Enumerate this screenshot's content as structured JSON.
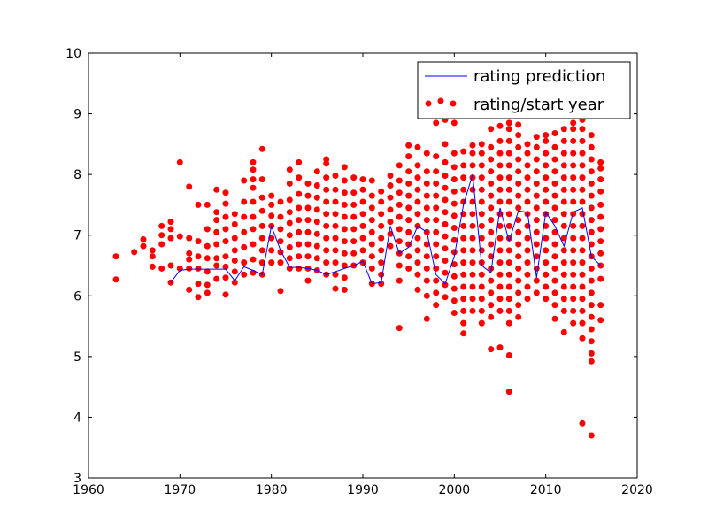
{
  "chart_data": {
    "type": "scatter",
    "title": "",
    "xlabel": "",
    "ylabel": "",
    "xlim": [
      1960,
      2020
    ],
    "ylim": [
      3,
      10
    ],
    "xticks": [
      1960,
      1970,
      1980,
      1990,
      2000,
      2010,
      2020
    ],
    "yticks": [
      3,
      4,
      5,
      6,
      7,
      8,
      9,
      10
    ],
    "grid": false,
    "legend_position": "top-right",
    "series": [
      {
        "name": "rating prediction",
        "type": "line",
        "color": "#0000ff",
        "x": [
          1969,
          1970,
          1971,
          1972,
          1973,
          1974,
          1975,
          1976,
          1977,
          1978,
          1979,
          1980,
          1981,
          1982,
          1983,
          1984,
          1985,
          1986,
          1987,
          1988,
          1989,
          1990,
          1991,
          1992,
          1993,
          1994,
          1995,
          1996,
          1997,
          1998,
          1999,
          2000,
          2001,
          2002,
          2003,
          2004,
          2005,
          2006,
          2007,
          2008,
          2009,
          2010,
          2011,
          2012,
          2013,
          2014,
          2015,
          2016
        ],
        "y": [
          6.22,
          6.42,
          6.44,
          6.44,
          6.44,
          6.44,
          6.44,
          6.25,
          6.48,
          6.42,
          6.35,
          7.15,
          6.75,
          6.47,
          6.47,
          6.45,
          6.42,
          6.35,
          6.4,
          6.45,
          6.5,
          6.57,
          6.2,
          6.22,
          7.15,
          6.7,
          6.8,
          7.15,
          7.05,
          6.35,
          6.2,
          6.65,
          7.5,
          8.0,
          6.5,
          6.38,
          7.45,
          6.9,
          7.4,
          7.38,
          6.3,
          7.38,
          7.15,
          6.82,
          7.38,
          7.45,
          6.65,
          6.5
        ]
      },
      {
        "name": "rating/start year",
        "type": "scatter",
        "color": "#ff0000",
        "groups": [
          {
            "x": 1963,
            "y": [
              6.27,
              6.65
            ]
          },
          {
            "x": 1965,
            "y": [
              6.72
            ]
          },
          {
            "x": 1966,
            "y": [
              6.82,
              6.93
            ]
          },
          {
            "x": 1967,
            "y": [
              6.48,
              6.65,
              6.75
            ]
          },
          {
            "x": 1968,
            "y": [
              6.45,
              6.85,
              7.0,
              7.15
            ]
          },
          {
            "x": 1969,
            "y": [
              6.22,
              6.5,
              6.95,
              7.1,
              7.22
            ]
          },
          {
            "x": 1970,
            "y": [
              6.45,
              6.98,
              8.2
            ]
          },
          {
            "x": 1971,
            "y": [
              6.1,
              6.45,
              6.6,
              6.7,
              6.95,
              7.8
            ]
          },
          {
            "x": 1972,
            "y": [
              5.98,
              6.2,
              6.45,
              6.65,
              6.9,
              7.5
            ]
          },
          {
            "x": 1973,
            "y": [
              6.05,
              6.18,
              6.4,
              6.62,
              6.82,
              7.1,
              7.5
            ]
          },
          {
            "x": 1974,
            "y": [
              6.28,
              6.5,
              6.62,
              6.85,
              7.05,
              7.25,
              7.38,
              7.75
            ]
          },
          {
            "x": 1975,
            "y": [
              6.02,
              6.3,
              6.48,
              6.65,
              6.9,
              7.1,
              7.3,
              7.52,
              7.7
            ]
          },
          {
            "x": 1976,
            "y": [
              6.22,
              6.4,
              6.58,
              6.75,
              6.95,
              7.18,
              7.35
            ]
          },
          {
            "x": 1977,
            "y": [
              6.35,
              6.55,
              6.8,
              7.05,
              7.3,
              7.55,
              7.9
            ]
          },
          {
            "x": 1978,
            "y": [
              6.38,
              6.6,
              6.85,
              7.1,
              7.3,
              7.55,
              7.78,
              7.92,
              8.08,
              8.2
            ]
          },
          {
            "x": 1979,
            "y": [
              6.35,
              6.55,
              6.75,
              6.95,
              7.15,
              7.4,
              7.62,
              7.92,
              8.42
            ]
          },
          {
            "x": 1980,
            "y": [
              6.55,
              6.75,
              6.95,
              7.15,
              7.32,
              7.5,
              7.65
            ]
          },
          {
            "x": 1981,
            "y": [
              6.08,
              6.55,
              6.72,
              6.9,
              7.1,
              7.3,
              7.55
            ]
          },
          {
            "x": 1982,
            "y": [
              6.45,
              6.62,
              6.8,
              7.0,
              7.2,
              7.38,
              7.58,
              7.85,
              8.08
            ]
          },
          {
            "x": 1983,
            "y": [
              6.45,
              6.65,
              6.85,
              7.05,
              7.25,
              7.45,
              7.68,
              7.95,
              8.2
            ]
          },
          {
            "x": 1984,
            "y": [
              6.25,
              6.45,
              6.65,
              6.85,
              7.05,
              7.25,
              7.45,
              7.65,
              7.85
            ]
          },
          {
            "x": 1985,
            "y": [
              6.42,
              6.62,
              6.82,
              7.02,
              7.22,
              7.42,
              7.62,
              7.82,
              8.05
            ]
          },
          {
            "x": 1986,
            "y": [
              6.35,
              6.55,
              6.75,
              6.95,
              7.15,
              7.35,
              7.55,
              7.75,
              7.95,
              8.18,
              8.25
            ]
          },
          {
            "x": 1987,
            "y": [
              6.12,
              6.35,
              6.55,
              6.75,
              6.95,
              7.15,
              7.35,
              7.55,
              7.75,
              7.98
            ]
          },
          {
            "x": 1988,
            "y": [
              6.1,
              6.3,
              6.5,
              6.7,
              6.9,
              7.1,
              7.3,
              7.5,
              7.7,
              7.9,
              8.12
            ]
          },
          {
            "x": 1989,
            "y": [
              6.5,
              6.7,
              6.9,
              7.1,
              7.3,
              7.5,
              7.7,
              7.95
            ]
          },
          {
            "x": 1990,
            "y": [
              6.55,
              6.75,
              6.95,
              7.15,
              7.35,
              7.55,
              7.75,
              7.92
            ]
          },
          {
            "x": 1991,
            "y": [
              6.2,
              6.45,
              6.65,
              6.85,
              7.05,
              7.25,
              7.45,
              7.65,
              7.9
            ]
          },
          {
            "x": 1992,
            "y": [
              6.2,
              6.35,
              6.55,
              6.75,
              6.95,
              7.15,
              7.35,
              7.55,
              7.72
            ]
          },
          {
            "x": 1993,
            "y": [
              6.82,
              7.02,
              7.22,
              7.42,
              7.62,
              7.82,
              7.98
            ]
          },
          {
            "x": 1994,
            "y": [
              5.47,
              6.25,
              6.5,
              6.7,
              6.9,
              7.1,
              7.3,
              7.5,
              7.7,
              7.9,
              8.15
            ]
          },
          {
            "x": 1995,
            "y": [
              6.45,
              6.65,
              6.85,
              7.05,
              7.25,
              7.45,
              7.65,
              7.85,
              8.05,
              8.3,
              8.48
            ]
          },
          {
            "x": 1996,
            "y": [
              6.1,
              6.35,
              6.55,
              6.75,
              6.95,
              7.15,
              7.35,
              7.55,
              7.75,
              7.95,
              8.15,
              8.45
            ]
          },
          {
            "x": 1997,
            "y": [
              5.62,
              6.0,
              6.25,
              6.45,
              6.65,
              6.85,
              7.05,
              7.25,
              7.45,
              7.65,
              7.85,
              8.05,
              8.35
            ]
          },
          {
            "x": 1998,
            "y": [
              5.85,
              6.05,
              6.25,
              6.45,
              6.65,
              6.85,
              7.05,
              7.25,
              7.45,
              7.65,
              7.85,
              8.05,
              8.3,
              8.85
            ]
          },
          {
            "x": 1999,
            "y": [
              5.98,
              6.18,
              6.38,
              6.58,
              6.78,
              6.98,
              7.18,
              7.38,
              7.58,
              7.78,
              7.98,
              8.2,
              8.5,
              8.9
            ]
          },
          {
            "x": 2000,
            "y": [
              5.72,
              5.92,
              6.12,
              6.32,
              6.52,
              6.72,
              6.92,
              7.12,
              7.32,
              7.52,
              7.72,
              7.92,
              8.12,
              8.35,
              8.85
            ]
          },
          {
            "x": 2001,
            "y": [
              5.38,
              5.55,
              5.75,
              5.95,
              6.15,
              6.35,
              6.55,
              6.75,
              6.95,
              7.15,
              7.35,
              7.55,
              7.75,
              7.95,
              8.15,
              8.38
            ]
          },
          {
            "x": 2002,
            "y": [
              5.75,
              5.95,
              6.15,
              6.35,
              6.55,
              6.75,
              6.95,
              7.15,
              7.35,
              7.55,
              7.75,
              7.95,
              8.15,
              8.35,
              8.48
            ]
          },
          {
            "x": 2003,
            "y": [
              5.55,
              5.75,
              5.95,
              6.15,
              6.35,
              6.55,
              6.75,
              6.95,
              7.15,
              7.35,
              7.55,
              7.75,
              7.95,
              8.15,
              8.35,
              8.5
            ]
          },
          {
            "x": 2004,
            "y": [
              5.12,
              5.65,
              5.85,
              6.05,
              6.25,
              6.45,
              6.65,
              6.85,
              7.05,
              7.25,
              7.45,
              7.65,
              7.85,
              8.05,
              8.25,
              8.45,
              8.75
            ]
          },
          {
            "x": 2005,
            "y": [
              5.15,
              5.75,
              5.95,
              6.15,
              6.35,
              6.55,
              6.75,
              6.95,
              7.15,
              7.35,
              7.55,
              7.75,
              7.95,
              8.15,
              8.35,
              8.55,
              8.8
            ]
          },
          {
            "x": 2006,
            "y": [
              4.42,
              5.02,
              5.55,
              5.75,
              5.95,
              6.15,
              6.35,
              6.55,
              6.75,
              6.95,
              7.15,
              7.35,
              7.55,
              7.75,
              7.95,
              8.15,
              8.35,
              8.55,
              8.75,
              8.85
            ]
          },
          {
            "x": 2007,
            "y": [
              5.65,
              5.85,
              6.05,
              6.25,
              6.45,
              6.65,
              6.85,
              7.05,
              7.25,
              7.45,
              7.65,
              7.85,
              8.05,
              8.25,
              8.45,
              8.65,
              8.82
            ]
          },
          {
            "x": 2008,
            "y": [
              5.95,
              6.15,
              6.35,
              6.55,
              6.75,
              6.95,
              7.15,
              7.35,
              7.55,
              7.75,
              7.95,
              8.15,
              8.35,
              8.5
            ]
          },
          {
            "x": 2009,
            "y": [
              6.05,
              6.25,
              6.45,
              6.65,
              6.85,
              7.05,
              7.25,
              7.45,
              7.65,
              7.85,
              8.05,
              8.25,
              8.45,
              8.62
            ]
          },
          {
            "x": 2010,
            "y": [
              5.95,
              6.15,
              6.35,
              6.55,
              6.75,
              6.95,
              7.15,
              7.35,
              7.55,
              7.75,
              7.95,
              8.15,
              8.35,
              8.55,
              8.65
            ]
          },
          {
            "x": 2011,
            "y": [
              5.62,
              5.85,
              6.05,
              6.25,
              6.45,
              6.65,
              6.85,
              7.05,
              7.25,
              7.45,
              7.65,
              7.85,
              8.05,
              8.25,
              8.45,
              8.68
            ]
          },
          {
            "x": 2012,
            "y": [
              5.4,
              5.75,
              5.95,
              6.15,
              6.35,
              6.55,
              6.75,
              6.95,
              7.15,
              7.35,
              7.55,
              7.75,
              7.95,
              8.15,
              8.35,
              8.55,
              8.75
            ]
          },
          {
            "x": 2013,
            "y": [
              5.55,
              5.75,
              5.95,
              6.15,
              6.35,
              6.55,
              6.75,
              6.95,
              7.15,
              7.35,
              7.55,
              7.75,
              7.95,
              8.15,
              8.35,
              8.55,
              8.75,
              8.85
            ]
          },
          {
            "x": 2014,
            "y": [
              3.9,
              5.3,
              5.55,
              5.75,
              5.95,
              6.15,
              6.35,
              6.55,
              6.75,
              6.95,
              7.15,
              7.35,
              7.55,
              7.75,
              7.95,
              8.15,
              8.35,
              8.55,
              8.75,
              8.9
            ]
          },
          {
            "x": 2015,
            "y": [
              3.7,
              4.92,
              5.05,
              5.25,
              5.45,
              5.65,
              5.85,
              6.05,
              6.25,
              6.45,
              6.65,
              6.85,
              7.05,
              7.25,
              7.45,
              7.65,
              7.85,
              8.05,
              8.25,
              8.45,
              8.65
            ]
          },
          {
            "x": 2016,
            "y": [
              5.6,
              5.85,
              6.28,
              6.5,
              6.7,
              6.9,
              7.1,
              7.3,
              7.5,
              7.72,
              7.92,
              8.1,
              8.2
            ]
          }
        ]
      }
    ]
  }
}
